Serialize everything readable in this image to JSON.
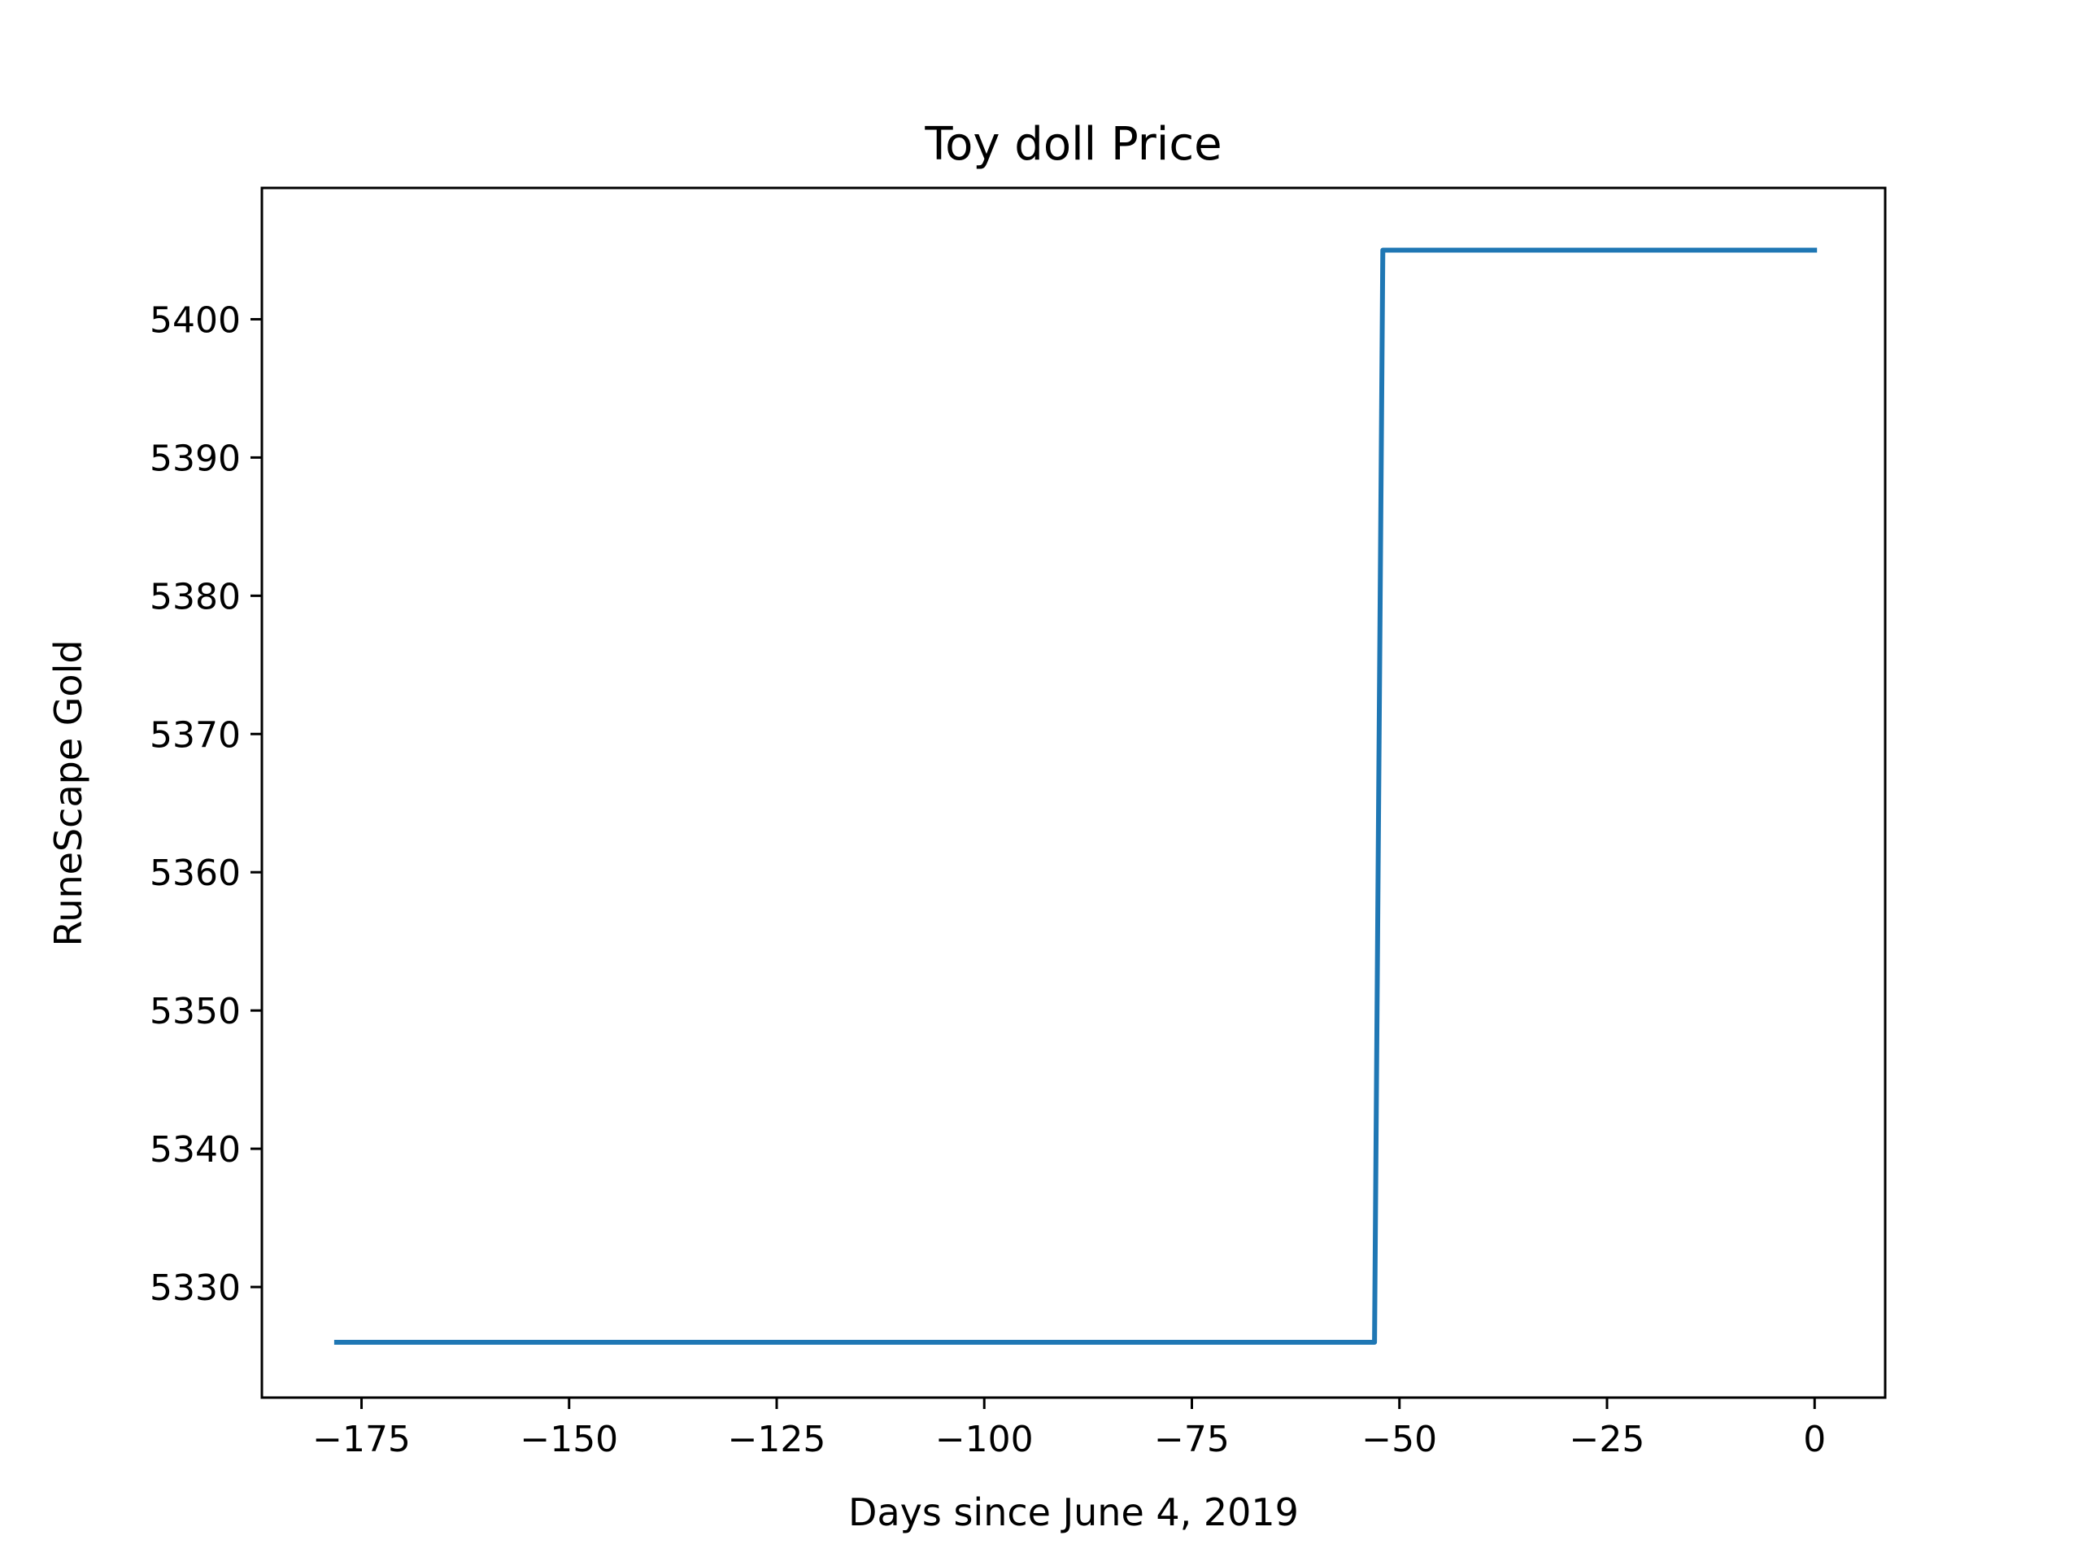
{
  "chart_data": {
    "type": "line",
    "title": "Toy doll Price",
    "xlabel": "Days since June 4, 2019",
    "ylabel": "RuneScape Gold",
    "xlim": [
      -187,
      8.5
    ],
    "ylim": [
      5322,
      5409.5
    ],
    "grid": false,
    "x_ticks": [
      -175,
      -150,
      -125,
      -100,
      -75,
      -50,
      -25,
      0
    ],
    "x_tick_labels": [
      "−175",
      "−150",
      "−125",
      "−100",
      "−75",
      "−50",
      "−25",
      "0"
    ],
    "y_ticks": [
      5330,
      5340,
      5350,
      5360,
      5370,
      5380,
      5390,
      5400
    ],
    "y_tick_labels": [
      "5330",
      "5340",
      "5350",
      "5360",
      "5370",
      "5380",
      "5390",
      "5400"
    ],
    "series": [
      {
        "color": "#1f77b4",
        "x": [
          -178,
          -53,
          -52,
          0
        ],
        "y": [
          5326,
          5326,
          5405,
          5405
        ]
      }
    ]
  }
}
